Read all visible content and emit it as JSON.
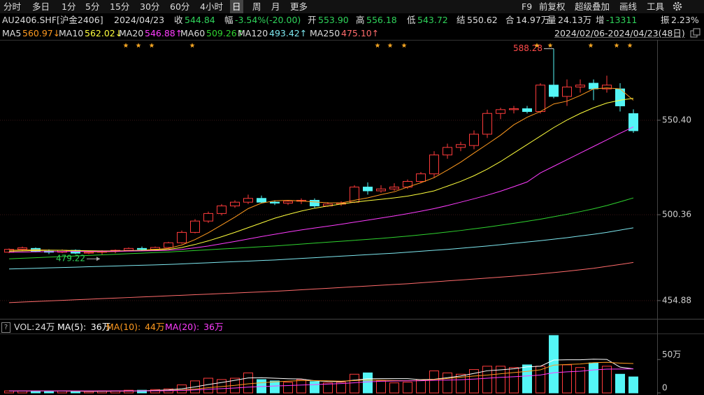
{
  "toolbar": {
    "tabs": [
      "分时",
      "多日",
      "1分",
      "5分",
      "15分",
      "30分",
      "60分",
      "4小时",
      "日",
      "周",
      "月",
      "更多"
    ],
    "selected_index": 8,
    "tools": [
      "F9",
      "前复权",
      "超级叠加",
      "画线",
      "工具"
    ]
  },
  "quote": {
    "symbol": "AU2406.SHF[沪金2406]",
    "date": "2024/04/23",
    "items": [
      {
        "label": "收",
        "value": "544.84",
        "color": "#2fd35a"
      },
      {
        "label": "幅",
        "value": "-3.54%(-20.00)",
        "color": "#2fd35a"
      },
      {
        "label": "开",
        "value": "553.90",
        "color": "#2fd35a"
      },
      {
        "label": "高",
        "value": "556.18",
        "color": "#2fd35a"
      },
      {
        "label": "低",
        "value": "543.72",
        "color": "#2fd35a"
      },
      {
        "label": "结",
        "value": "550.62",
        "color": "#dddddd"
      },
      {
        "label": "合",
        "value": "14.97万",
        "color": "#dddddd"
      },
      {
        "label": "量",
        "value": "24.13万",
        "color": "#dddddd"
      },
      {
        "label": "增",
        "value": "-13311",
        "color": "#2fd35a"
      },
      {
        "label": "振",
        "value": "2.23%",
        "color": "#dddddd"
      }
    ]
  },
  "chart_data": [
    {
      "type": "candlestick",
      "period": "2024/02/06-2024/04/23(48日)",
      "up_color": "#ff3b3b",
      "down_color": "#54f6f6",
      "ylim": [
        445.6,
        592.6
      ],
      "yticks": [
        454.88,
        500.36,
        {
          "value": 550.4,
          "label": "550.40"
        }
      ],
      "grid": true,
      "open": [
        480.5,
        482,
        482.5,
        481,
        480.5,
        481.5,
        480,
        480.5,
        481,
        481.5,
        482.5,
        482,
        483,
        485.5,
        491,
        497,
        501,
        505,
        507,
        509,
        507,
        506.5,
        507.5,
        508,
        505,
        506,
        507,
        515,
        513,
        514,
        515,
        518,
        522,
        532,
        536,
        537,
        543,
        554,
        556,
        556.5,
        555,
        569,
        563,
        568,
        570,
        567,
        567,
        553.9
      ],
      "high": [
        482.5,
        483.5,
        483,
        482,
        482,
        482,
        481,
        481.5,
        482,
        483,
        483.5,
        483.5,
        486,
        492,
        498,
        502,
        506,
        508,
        511,
        510.5,
        508,
        508,
        509,
        509,
        507,
        507.5,
        516,
        517.5,
        516,
        517,
        519,
        523,
        534,
        538,
        539,
        545,
        556,
        557,
        558,
        558,
        570,
        588.28,
        572,
        572,
        572,
        574,
        570,
        556.18
      ],
      "low": [
        480,
        481,
        480.5,
        479.5,
        480,
        479.5,
        479.5,
        479.22,
        480,
        481,
        481.5,
        481.5,
        482.5,
        485,
        490.5,
        496,
        500,
        504,
        506,
        506.5,
        505.5,
        505.5,
        506,
        504,
        504.5,
        505,
        506.5,
        511,
        512,
        513,
        514,
        517,
        520,
        530,
        534,
        535,
        541,
        551,
        554,
        554,
        554,
        562,
        558,
        565,
        561,
        565,
        555,
        543.72
      ],
      "close": [
        482,
        482.8,
        481,
        480.5,
        481.5,
        480,
        480.5,
        481,
        481.5,
        482.5,
        482,
        483,
        485.5,
        491,
        497,
        501,
        505,
        507,
        509,
        507,
        506.5,
        507.5,
        508,
        505,
        506,
        506.5,
        515,
        513,
        514,
        515,
        518,
        522,
        532,
        536,
        537.5,
        543,
        554,
        556,
        556.5,
        555,
        569,
        563,
        568,
        569,
        567,
        569,
        558,
        544.84
      ],
      "series": [
        {
          "name": "MA5",
          "color": "#ff9a1f",
          "last_label": "560.97↓",
          "values": [
            481.5,
            481.7,
            481.8,
            481.6,
            481.5,
            481.1,
            480.7,
            480.7,
            480.8,
            481.2,
            481.5,
            482.0,
            482.5,
            484.3,
            487.2,
            490.8,
            494.9,
            499.1,
            503.6,
            506.5,
            507.7,
            508.0,
            507.6,
            507.1,
            506.7,
            506.6,
            508.0,
            509.3,
            511.0,
            512.5,
            515.0,
            517.3,
            520.0,
            524.0,
            528.2,
            533.0,
            537.7,
            542.5,
            548.0,
            552.0,
            555.0,
            559.0,
            560.5,
            563.5,
            567.0,
            567.5,
            567.0,
            560.97
          ]
        },
        {
          "name": "MA10",
          "color": "#ffff3c",
          "last_label": "562.02↓",
          "values": [
            481.0,
            481.2,
            481.4,
            481.5,
            481.5,
            481.4,
            481.3,
            481.2,
            481.2,
            481.3,
            481.5,
            481.7,
            482.0,
            483.0,
            484.6,
            486.5,
            488.7,
            491.0,
            493.5,
            496.0,
            498.5,
            500.5,
            502.3,
            503.8,
            505.0,
            506.0,
            507.0,
            507.8,
            508.5,
            509.3,
            510.2,
            511.5,
            513.0,
            515.5,
            518.0,
            521.0,
            524.5,
            528.5,
            533.0,
            537.5,
            542.0,
            546.5,
            550.5,
            554.0,
            557.0,
            559.5,
            561.0,
            562.02
          ]
        },
        {
          "name": "MA20",
          "color": "#ff3cff",
          "last_label": "546.88↑",
          "values": [
            480.5,
            480.6,
            480.7,
            480.8,
            480.8,
            480.9,
            480.9,
            481.0,
            481.0,
            481.1,
            481.2,
            481.3,
            481.5,
            482.0,
            482.8,
            483.8,
            485.0,
            486.2,
            487.5,
            488.8,
            490.0,
            491.2,
            492.3,
            493.3,
            494.3,
            495.3,
            496.4,
            497.5,
            498.6,
            499.7,
            500.9,
            502.2,
            503.6,
            505.2,
            507.0,
            508.8,
            510.7,
            512.8,
            515.2,
            517.7,
            522.5,
            526.0,
            529.5,
            533.0,
            536.5,
            540.0,
            543.5,
            546.88
          ]
        },
        {
          "name": "MA60",
          "color": "#2fd32f",
          "last_label": "509.26↑",
          "values": [
            477.0,
            477.3,
            477.6,
            477.9,
            478.2,
            478.5,
            478.8,
            479.1,
            479.4,
            479.7,
            480.0,
            480.3,
            480.6,
            481.0,
            481.4,
            481.8,
            482.2,
            482.6,
            483.0,
            483.4,
            483.8,
            484.3,
            484.8,
            485.3,
            485.8,
            486.3,
            486.8,
            487.3,
            487.8,
            488.4,
            489.0,
            489.7,
            490.4,
            491.2,
            492.0,
            492.9,
            493.8,
            494.8,
            495.8,
            496.9,
            498.0,
            499.3,
            500.6,
            502.0,
            503.5,
            505.2,
            507.2,
            509.26
          ]
        },
        {
          "name": "MA120",
          "color": "#7ee8f0",
          "last_label": "493.42↑",
          "values": [
            471.6,
            471.8,
            472.0,
            472.2,
            472.4,
            472.6,
            472.8,
            473.0,
            473.2,
            473.4,
            473.6,
            473.8,
            474.0,
            474.3,
            474.6,
            474.9,
            475.2,
            475.5,
            475.8,
            476.1,
            476.4,
            476.8,
            477.2,
            477.6,
            478.0,
            478.4,
            478.8,
            479.2,
            479.6,
            480.0,
            480.5,
            481.0,
            481.5,
            482.0,
            482.6,
            483.2,
            483.8,
            484.5,
            485.2,
            485.9,
            486.6,
            487.4,
            488.2,
            489.1,
            490.0,
            491.0,
            492.2,
            493.42
          ]
        },
        {
          "name": "MA250",
          "color": "#ff6b6b",
          "last_label": "475.10↑",
          "values": [
            453.8,
            454.1,
            454.4,
            454.7,
            455.0,
            455.3,
            455.6,
            455.9,
            456.2,
            456.5,
            456.8,
            457.1,
            457.4,
            457.7,
            458.0,
            458.3,
            458.6,
            458.9,
            459.2,
            459.5,
            459.8,
            460.2,
            460.6,
            461.0,
            461.4,
            461.8,
            462.2,
            462.6,
            463.0,
            463.4,
            463.8,
            464.3,
            464.8,
            465.3,
            465.8,
            466.3,
            466.8,
            467.3,
            467.8,
            468.4,
            469.0,
            469.7,
            470.4,
            471.2,
            472.0,
            473.0,
            474.0,
            475.1
          ]
        }
      ]
    },
    {
      "type": "bar",
      "help": "?",
      "name": "VOL:",
      "last_label": "24万",
      "ylim": [
        0,
        88
      ],
      "yticks": [
        0,
        {
          "value": 50,
          "label": "50万"
        }
      ],
      "values": [
        3,
        3,
        3,
        2,
        3,
        2,
        2,
        3,
        3,
        4,
        4,
        5,
        6,
        12,
        18,
        22,
        20,
        22,
        30,
        20,
        18,
        16,
        20,
        17,
        15,
        16,
        28,
        30,
        18,
        15,
        16,
        20,
        33,
        30,
        28,
        35,
        40,
        40,
        38,
        42,
        40,
        86,
        42,
        38,
        45,
        40,
        28,
        24
      ],
      "series": [
        {
          "name": "MA(5):",
          "color": "#ffffff",
          "last_label": "36万",
          "values": [
            3,
            3,
            3,
            3,
            3,
            2.6,
            2.4,
            2.4,
            2.6,
            2.8,
            3.2,
            3.8,
            4.4,
            6.2,
            9,
            12.6,
            15.6,
            18.8,
            22.4,
            22.8,
            22,
            21.2,
            20.8,
            18.2,
            17.2,
            16.8,
            19.2,
            21.2,
            21.4,
            21.4,
            21.4,
            19.8,
            20.4,
            22.8,
            25.4,
            29.2,
            33.2,
            34.6,
            36.2,
            39,
            40,
            49.2,
            49.6,
            49.6,
            50.6,
            50.2,
            38.6,
            36
          ]
        },
        {
          "name": "MA(10):",
          "color": "#ff9a1f",
          "last_label": "44万",
          "values": [
            3,
            3,
            3,
            3,
            3,
            2.8,
            2.7,
            2.7,
            2.8,
            2.9,
            3.1,
            3.4,
            3.5,
            4.4,
            5.8,
            7.9,
            9.5,
            11.3,
            13.6,
            15.2,
            16.6,
            17.6,
            18.4,
            18.5,
            18.1,
            17.5,
            18.5,
            19.2,
            19,
            18.5,
            18.2,
            18.6,
            20,
            21.6,
            23.6,
            25.3,
            26.7,
            28.7,
            30.5,
            32.2,
            34.6,
            41.7,
            42.6,
            43.4,
            45.3,
            45.8,
            44.7,
            44
          ]
        },
        {
          "name": "MA(20):",
          "color": "#ff3cff",
          "last_label": "36万",
          "values": [
            3,
            3,
            3,
            3,
            3,
            3,
            3,
            3,
            3,
            3,
            3,
            3.2,
            3.3,
            3.8,
            4.5,
            5.5,
            6.4,
            7.3,
            8.6,
            9.5,
            10.3,
            11,
            11.8,
            12.5,
            13.2,
            14,
            15.2,
            16.5,
            17.4,
            17.8,
            18.1,
            18.2,
            18.8,
            19.3,
            19.8,
            20.7,
            22,
            23.3,
            24.2,
            25.4,
            26.8,
            30.2,
            31.6,
            32.5,
            34.5,
            35.6,
            35.7,
            36
          ]
        }
      ]
    }
  ]
}
